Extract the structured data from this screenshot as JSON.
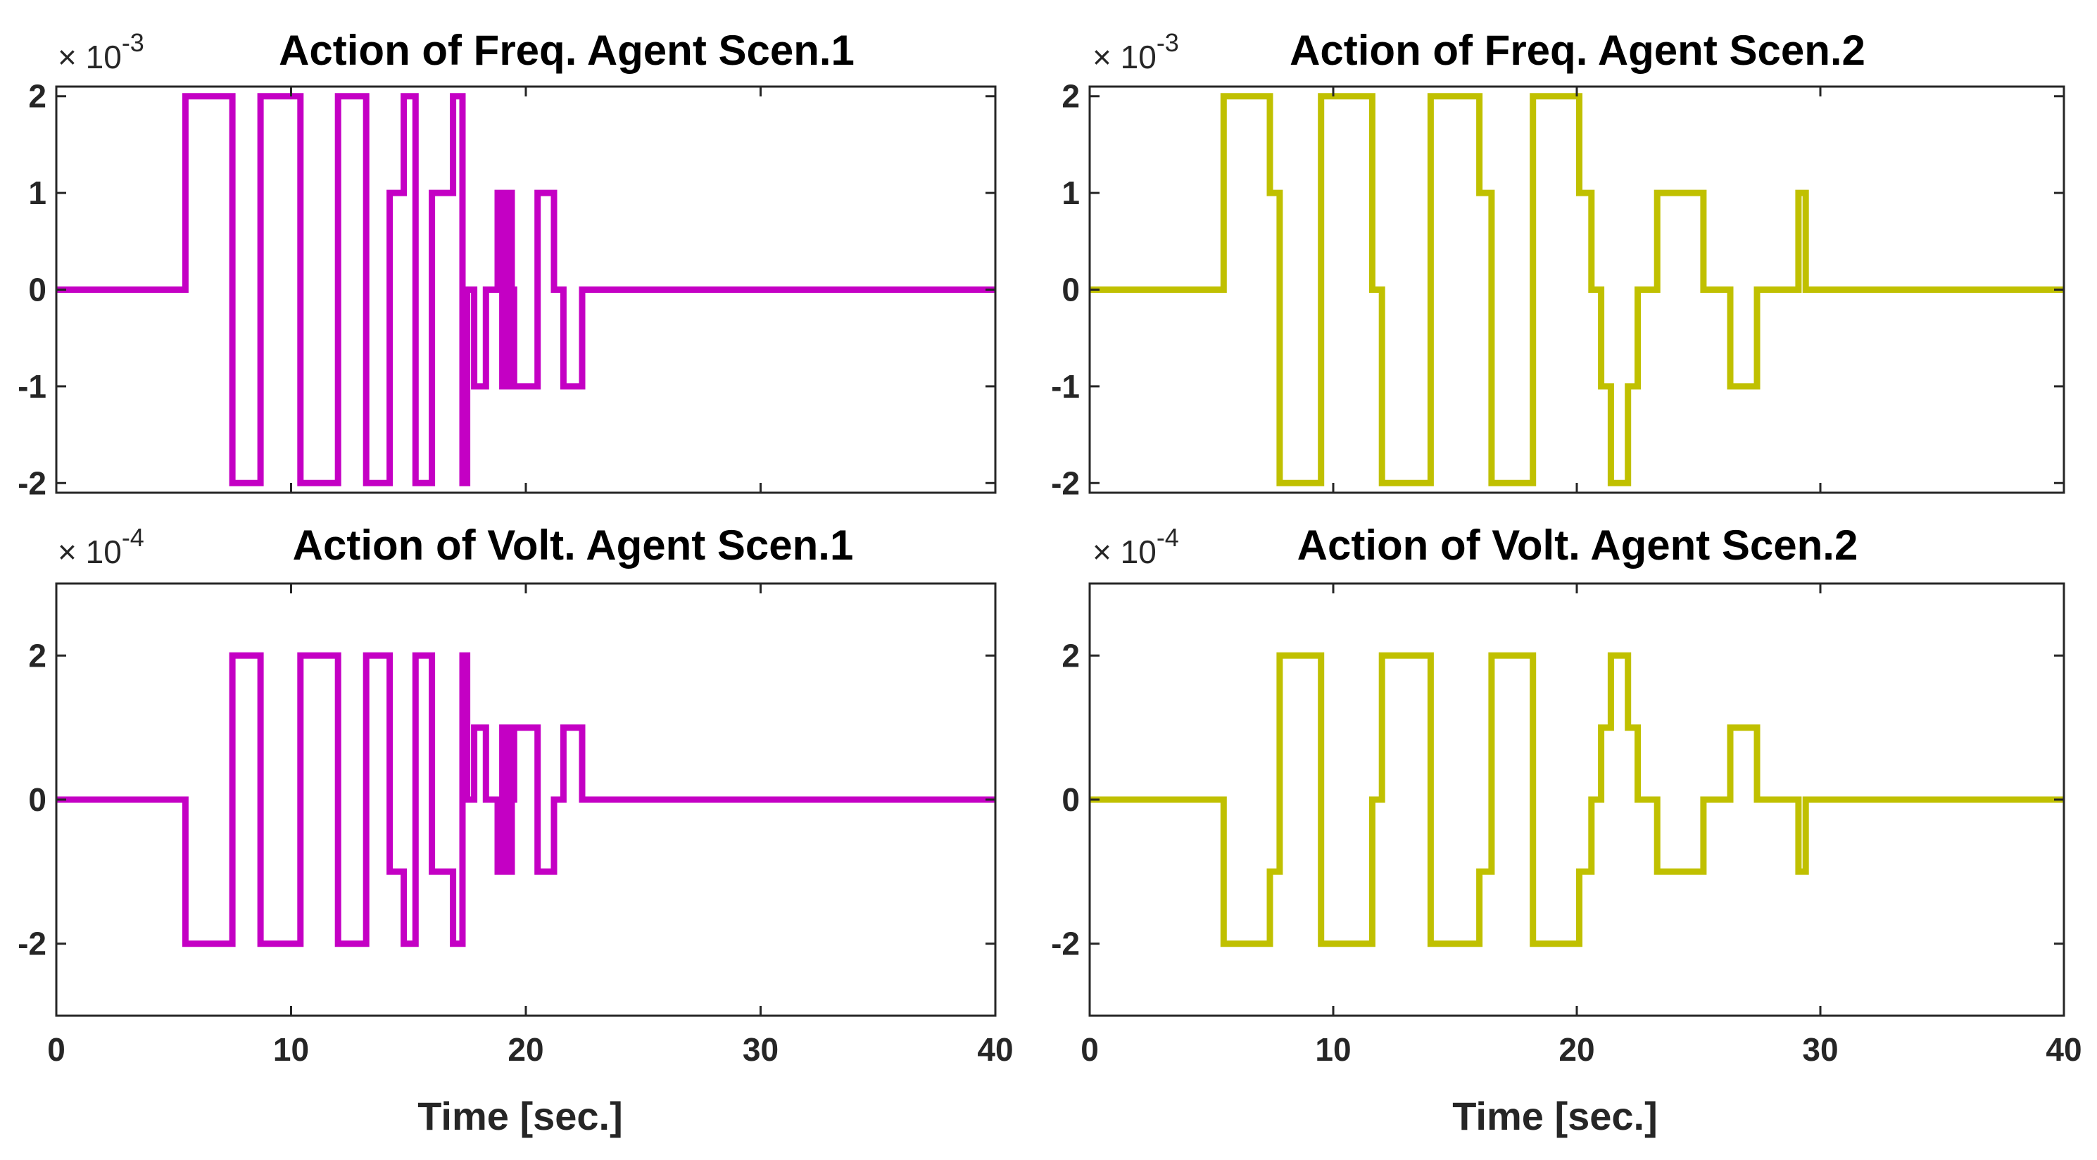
{
  "chart_data": [
    {
      "type": "line",
      "title": "Action of Freq. Agent Scen.1",
      "exponent_base": "× 10",
      "exponent_power": "-3",
      "color": "#c400c4",
      "xlim": [
        0,
        40
      ],
      "ylim": [
        -2.1,
        2.1
      ],
      "xticks": [
        0,
        10,
        20,
        30,
        40
      ],
      "yticks": [
        2,
        1,
        0,
        -1,
        -2
      ],
      "ytick_labels": [
        "2",
        "1",
        "0",
        "-1",
        "-2"
      ],
      "xtick_labels": [
        "0",
        "10",
        "20",
        "30",
        "40"
      ],
      "show_xtick_labels": false,
      "xlabel": "",
      "x": [
        0,
        5.5,
        5.5,
        7.5,
        7.5,
        8.7,
        8.7,
        10.4,
        10.4,
        12.0,
        12.0,
        13.2,
        13.2,
        14.2,
        14.2,
        14.8,
        14.8,
        15.3,
        15.3,
        16.0,
        16.0,
        16.9,
        16.9,
        17.3,
        17.3,
        17.5,
        17.5,
        17.8,
        17.8,
        18.3,
        18.3,
        18.8,
        18.8,
        19.0,
        19.0,
        19.1,
        19.1,
        19.2,
        19.2,
        19.3,
        19.3,
        19.4,
        19.4,
        19.5,
        19.5,
        19.6,
        19.6,
        19.8,
        19.8,
        20.5,
        20.5,
        21.2,
        21.2,
        21.6,
        21.6,
        22.4,
        22.4,
        40
      ],
      "y": [
        0,
        0,
        2,
        2,
        -2,
        -2,
        2,
        2,
        -2,
        -2,
        2,
        2,
        -2,
        -2,
        1,
        1,
        2,
        2,
        -2,
        -2,
        1,
        1,
        2,
        2,
        -2,
        -2,
        0,
        0,
        -1,
        -1,
        0,
        0,
        1,
        1,
        -1,
        -1,
        1,
        1,
        -1,
        -1,
        1,
        1,
        0,
        0,
        -1,
        -1,
        -1,
        -1,
        -1,
        -1,
        1,
        1,
        0,
        0,
        -1,
        -1,
        0,
        0
      ]
    },
    {
      "type": "line",
      "title": "Action of Freq. Agent Scen.2",
      "exponent_base": "× 10",
      "exponent_power": "-3",
      "color": "#c0c000",
      "xlim": [
        0,
        40
      ],
      "ylim": [
        -2.1,
        2.1
      ],
      "xticks": [
        0,
        10,
        20,
        30,
        40
      ],
      "yticks": [
        2,
        1,
        0,
        -1,
        -2
      ],
      "ytick_labels": [
        "2",
        "1",
        "0",
        "-1",
        "-2"
      ],
      "xtick_labels": [
        "0",
        "10",
        "20",
        "30",
        "40"
      ],
      "show_xtick_labels": false,
      "xlabel": "",
      "x": [
        0,
        5.5,
        5.5,
        7.4,
        7.4,
        7.8,
        7.8,
        9.5,
        9.5,
        11.6,
        11.6,
        12.0,
        12.0,
        14.0,
        14.0,
        16.0,
        16.0,
        16.5,
        16.5,
        18.2,
        18.2,
        20.1,
        20.1,
        20.6,
        20.6,
        21.0,
        21.0,
        21.4,
        21.4,
        22.1,
        22.1,
        22.5,
        22.5,
        23.3,
        23.3,
        25.2,
        25.2,
        26.3,
        26.3,
        27.4,
        27.4,
        29.1,
        29.1,
        29.4,
        29.4,
        40
      ],
      "y": [
        0,
        0,
        2,
        2,
        1,
        1,
        -2,
        -2,
        2,
        2,
        0,
        0,
        -2,
        -2,
        2,
        2,
        1,
        1,
        -2,
        -2,
        2,
        2,
        1,
        1,
        0,
        0,
        -1,
        -1,
        -2,
        -2,
        -1,
        -1,
        0,
        0,
        1,
        1,
        0,
        0,
        -1,
        -1,
        0,
        0,
        1,
        1,
        0,
        0
      ]
    },
    {
      "type": "line",
      "title": "Action of Volt. Agent Scen.1",
      "exponent_base": "× 10",
      "exponent_power": "-4",
      "color": "#c400c4",
      "xlim": [
        0,
        40
      ],
      "ylim": [
        -3,
        3
      ],
      "xticks": [
        0,
        10,
        20,
        30,
        40
      ],
      "yticks": [
        2,
        0,
        -2
      ],
      "ytick_labels": [
        "2",
        "0",
        "-2"
      ],
      "xtick_labels": [
        "0",
        "10",
        "20",
        "30",
        "40"
      ],
      "show_xtick_labels": true,
      "xlabel": "Time [sec.]",
      "x": [
        0,
        5.5,
        5.5,
        7.5,
        7.5,
        8.7,
        8.7,
        10.4,
        10.4,
        12.0,
        12.0,
        13.2,
        13.2,
        14.2,
        14.2,
        14.8,
        14.8,
        15.3,
        15.3,
        16.0,
        16.0,
        16.9,
        16.9,
        17.3,
        17.3,
        17.5,
        17.5,
        17.8,
        17.8,
        18.3,
        18.3,
        18.8,
        18.8,
        19.0,
        19.0,
        19.1,
        19.1,
        19.2,
        19.2,
        19.3,
        19.3,
        19.4,
        19.4,
        19.5,
        19.5,
        19.6,
        19.6,
        19.8,
        19.8,
        20.5,
        20.5,
        21.2,
        21.2,
        21.6,
        21.6,
        22.4,
        22.4,
        40
      ],
      "y": [
        0,
        0,
        -2,
        -2,
        2,
        2,
        -2,
        -2,
        2,
        2,
        -2,
        -2,
        2,
        2,
        -1,
        -1,
        -2,
        -2,
        2,
        2,
        -1,
        -1,
        -2,
        -2,
        2,
        2,
        0,
        0,
        1,
        1,
        0,
        0,
        -1,
        -1,
        1,
        1,
        -1,
        -1,
        1,
        1,
        -1,
        -1,
        0,
        0,
        1,
        1,
        1,
        1,
        1,
        1,
        -1,
        -1,
        0,
        0,
        1,
        1,
        0,
        0
      ]
    },
    {
      "type": "line",
      "title": "Action of Volt. Agent Scen.2",
      "exponent_base": "× 10",
      "exponent_power": "-4",
      "color": "#c0c000",
      "xlim": [
        0,
        40
      ],
      "ylim": [
        -3,
        3
      ],
      "xticks": [
        0,
        10,
        20,
        30,
        40
      ],
      "yticks": [
        2,
        0,
        -2
      ],
      "ytick_labels": [
        "2",
        "0",
        "-2"
      ],
      "xtick_labels": [
        "0",
        "10",
        "20",
        "30",
        "40"
      ],
      "show_xtick_labels": true,
      "xlabel": "Time [sec.]",
      "x": [
        0,
        5.5,
        5.5,
        7.4,
        7.4,
        7.8,
        7.8,
        9.5,
        9.5,
        11.6,
        11.6,
        12.0,
        12.0,
        14.0,
        14.0,
        16.0,
        16.0,
        16.5,
        16.5,
        18.2,
        18.2,
        20.1,
        20.1,
        20.6,
        20.6,
        21.0,
        21.0,
        21.4,
        21.4,
        22.1,
        22.1,
        22.5,
        22.5,
        23.3,
        23.3,
        25.2,
        25.2,
        26.3,
        26.3,
        27.4,
        27.4,
        29.1,
        29.1,
        29.4,
        29.4,
        40
      ],
      "y": [
        0,
        0,
        -2,
        -2,
        -1,
        -1,
        2,
        2,
        -2,
        -2,
        0,
        0,
        2,
        2,
        -2,
        -2,
        -1,
        -1,
        2,
        2,
        -2,
        -2,
        -1,
        -1,
        0,
        0,
        1,
        1,
        2,
        2,
        1,
        1,
        0,
        0,
        -1,
        -1,
        0,
        0,
        1,
        1,
        0,
        0,
        -1,
        -1,
        0,
        0
      ]
    }
  ]
}
